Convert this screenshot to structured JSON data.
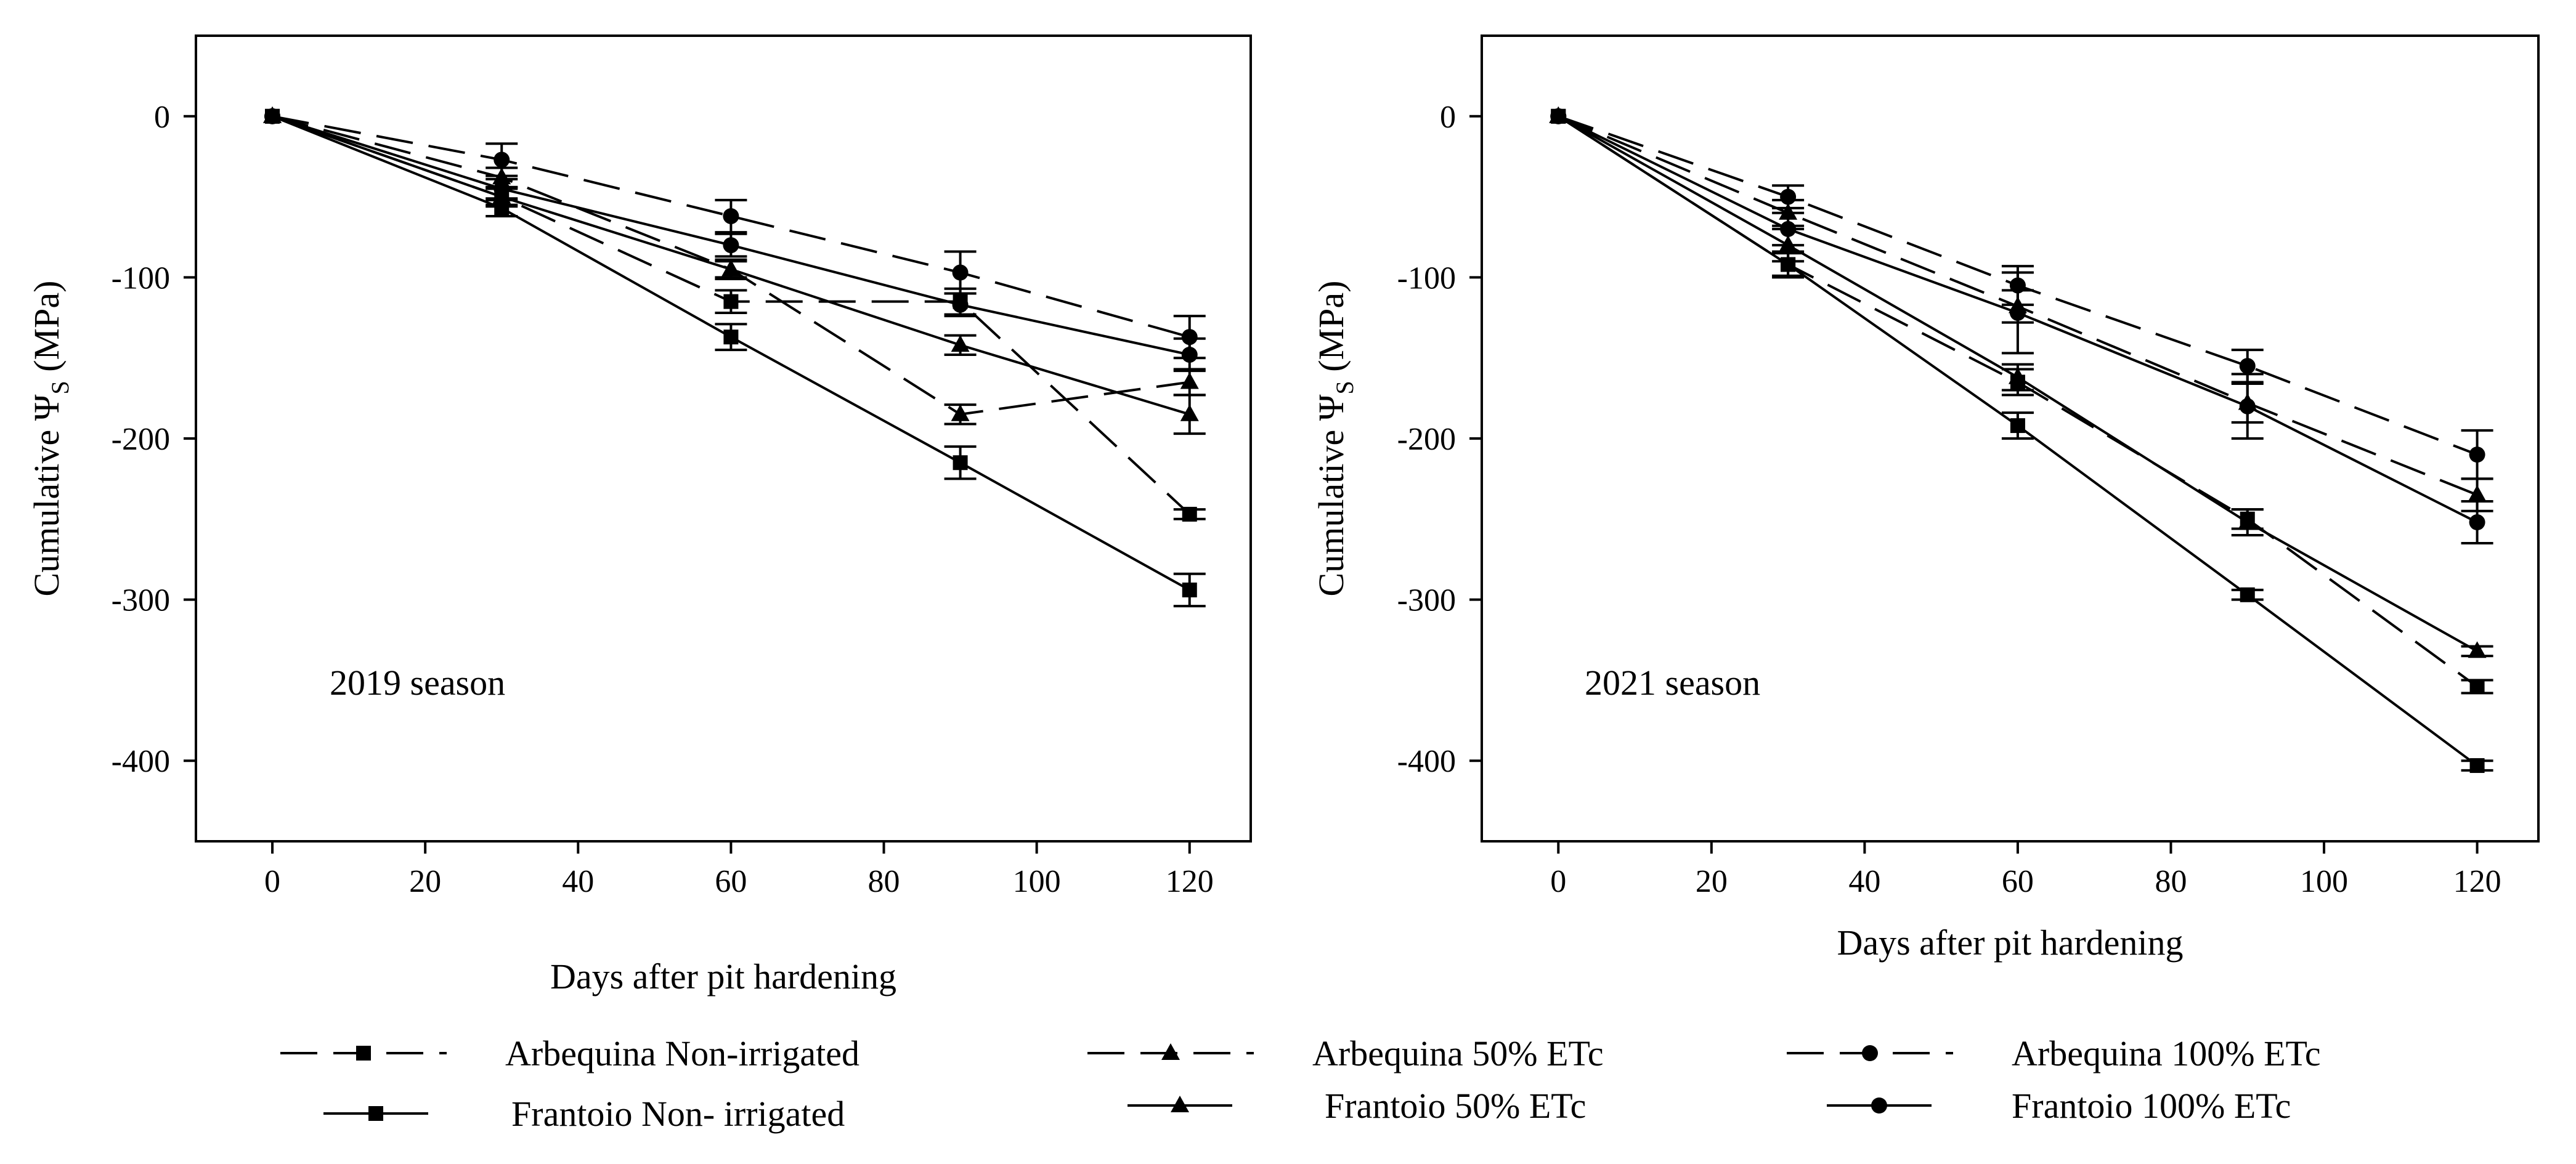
{
  "chart_data": [
    {
      "type": "line",
      "title": "",
      "annotation": "2019 season",
      "xlabel": "Days after pit hardening",
      "ylabel": "Cumulative Ψ",
      "ylabel_sub": "S",
      "ylabel_unit": " (MPa)",
      "xlim": [
        -10,
        128
      ],
      "ylim": [
        -450,
        50
      ],
      "xticks": [
        0,
        20,
        40,
        60,
        80,
        100,
        120
      ],
      "yticks": [
        0,
        -100,
        -200,
        -300,
        -400
      ],
      "grid": false,
      "x": [
        0,
        30,
        60,
        90,
        120
      ],
      "series": [
        {
          "name": "Arbequina Non-irrigated",
          "values": [
            0,
            -50,
            -115,
            -115,
            -247
          ],
          "error": [
            0,
            5,
            7,
            8,
            3
          ]
        },
        {
          "name": "Arbequina 50% ETc",
          "values": [
            0,
            -38,
            -95,
            -185,
            -165
          ],
          "error": [
            0,
            6,
            5,
            6,
            8
          ]
        },
        {
          "name": "Arbequina 100% ETc",
          "values": [
            0,
            -27,
            -62,
            -97,
            -137
          ],
          "error": [
            0,
            10,
            10,
            13,
            13
          ]
        },
        {
          "name": "Frantoio Non- irrigated",
          "values": [
            0,
            -57,
            -137,
            -215,
            -294
          ],
          "error": [
            0,
            5,
            8,
            10,
            10
          ]
        },
        {
          "name": "Frantoio 50% ETc",
          "values": [
            0,
            -50,
            -95,
            -142,
            -185
          ],
          "error": [
            0,
            6,
            6,
            6,
            12
          ]
        },
        {
          "name": "Frantoio 100% ETc",
          "values": [
            0,
            -45,
            -80,
            -117,
            -148
          ],
          "error": [
            0,
            6,
            7,
            7,
            10
          ]
        }
      ]
    },
    {
      "type": "line",
      "title": "",
      "annotation": "2021 season",
      "xlabel": "Days after pit hardening",
      "ylabel": "Cumulative Ψ",
      "ylabel_sub": "S",
      "ylabel_unit": " (MPa)",
      "xlim": [
        -10,
        128
      ],
      "ylim": [
        -450,
        50
      ],
      "xticks": [
        0,
        20,
        40,
        60,
        80,
        100,
        120
      ],
      "yticks": [
        0,
        -100,
        -200,
        -300,
        -400
      ],
      "grid": false,
      "x": [
        0,
        30,
        60,
        90,
        120
      ],
      "series": [
        {
          "name": "Arbequina Non-irrigated",
          "values": [
            0,
            -92,
            -165,
            -250,
            -354
          ],
          "error": [
            0,
            7,
            8,
            6,
            4
          ]
        },
        {
          "name": "Arbequina 50% ETc",
          "values": [
            0,
            -60,
            -118,
            -178,
            -235
          ],
          "error": [
            0,
            8,
            10,
            12,
            10
          ]
        },
        {
          "name": "Arbequina 100% ETc",
          "values": [
            0,
            -50,
            -105,
            -155,
            -210
          ],
          "error": [
            0,
            7,
            12,
            10,
            15
          ]
        },
        {
          "name": "Frantoio Non- irrigated",
          "values": [
            0,
            -92,
            -192,
            -297,
            -403
          ],
          "error": [
            0,
            8,
            8,
            3,
            3
          ]
        },
        {
          "name": "Frantoio 50% ETc",
          "values": [
            0,
            -80,
            -162,
            -252,
            -332
          ],
          "error": [
            0,
            10,
            8,
            8,
            3
          ]
        },
        {
          "name": "Frantoio 100% ETc",
          "values": [
            0,
            -70,
            -122,
            -180,
            -252
          ],
          "error": [
            0,
            10,
            25,
            20,
            13
          ]
        }
      ]
    }
  ],
  "legend": {
    "placement": "bottom",
    "items": [
      {
        "label": "Arbequina Non-irrigated",
        "marker": "square",
        "dashed": true
      },
      {
        "label": "Arbequina 50% ETc",
        "marker": "triangle",
        "dashed": true
      },
      {
        "label": "Arbequina 100% ETc",
        "marker": "circle",
        "dashed": true
      },
      {
        "label": "Frantoio Non- irrigated",
        "marker": "square",
        "dashed": false
      },
      {
        "label": "Frantoio 50% ETc",
        "marker": "triangle",
        "dashed": false
      },
      {
        "label": "Frantoio 100% ETc",
        "marker": "circle",
        "dashed": false
      }
    ]
  }
}
